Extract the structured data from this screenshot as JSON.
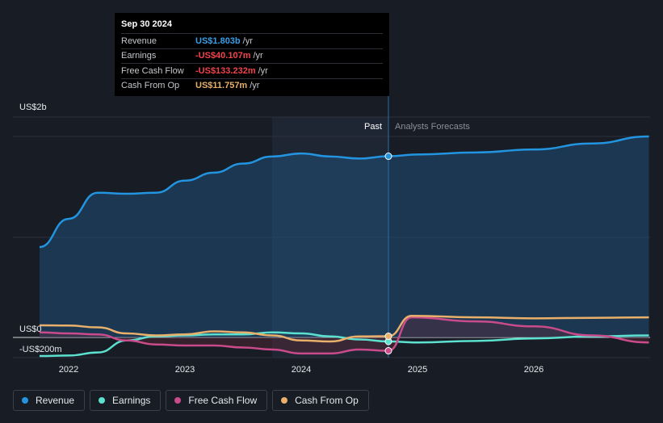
{
  "colors": {
    "revenue": "#2394df",
    "earnings": "#5ce0d0",
    "fcf": "#c94b8b",
    "cfo": "#e8b06a",
    "background": "#181c25"
  },
  "tooltip": {
    "date": "Sep 30 2024",
    "rows": [
      {
        "label": "Revenue",
        "value": "US$1.803b",
        "unit": "/yr",
        "color": "#3a9fe8"
      },
      {
        "label": "Earnings",
        "value": "-US$40.107m",
        "unit": "/yr",
        "color": "#f0434b"
      },
      {
        "label": "Free Cash Flow",
        "value": "-US$133.232m",
        "unit": "/yr",
        "color": "#f0434b"
      },
      {
        "label": "Cash From Op",
        "value": "US$11.757m",
        "unit": "/yr",
        "color": "#e8b06a"
      }
    ]
  },
  "regions": {
    "past": "Past",
    "forecast": "Analysts Forecasts"
  },
  "legend": [
    {
      "label": "Revenue",
      "icon": "revenue-dot-icon",
      "color": "#2394df"
    },
    {
      "label": "Earnings",
      "icon": "earnings-dot-icon",
      "color": "#5ce0d0"
    },
    {
      "label": "Free Cash Flow",
      "icon": "fcf-dot-icon",
      "color": "#c94b8b"
    },
    {
      "label": "Cash From Op",
      "icon": "cfo-dot-icon",
      "color": "#e8b06a"
    }
  ],
  "chart_data": {
    "type": "line",
    "x_tick_labels": [
      "2022",
      "2023",
      "2024",
      "2025",
      "2026"
    ],
    "x_ticks": [
      2022,
      2023,
      2024,
      2025,
      2026
    ],
    "y_tick_labels": [
      "US$2b",
      "US$0",
      "-US$200m"
    ],
    "y_ticks": [
      2000,
      0,
      -200
    ],
    "xlim": [
      2021.7,
      2026.99
    ],
    "ylim": [
      -200,
      2000
    ],
    "highlight_x": 2024.75,
    "shaded_past_range": [
      2023.75,
      2024.75
    ],
    "series": [
      {
        "name": "Revenue",
        "key": "revenue",
        "points": [
          [
            2021.75,
            900
          ],
          [
            2022.0,
            1180
          ],
          [
            2022.25,
            1440
          ],
          [
            2022.5,
            1430
          ],
          [
            2022.75,
            1440
          ],
          [
            2023.0,
            1560
          ],
          [
            2023.25,
            1640
          ],
          [
            2023.5,
            1730
          ],
          [
            2023.75,
            1800
          ],
          [
            2024.0,
            1830
          ],
          [
            2024.25,
            1800
          ],
          [
            2024.5,
            1780
          ],
          [
            2024.75,
            1803
          ],
          [
            2025.0,
            1820
          ],
          [
            2025.5,
            1840
          ],
          [
            2026.0,
            1870
          ],
          [
            2026.5,
            1930
          ],
          [
            2026.99,
            2000
          ]
        ]
      },
      {
        "name": "Earnings",
        "key": "earnings",
        "points": [
          [
            2021.75,
            -185
          ],
          [
            2022.0,
            -180
          ],
          [
            2022.25,
            -150
          ],
          [
            2022.5,
            -30
          ],
          [
            2022.75,
            10
          ],
          [
            2023.0,
            20
          ],
          [
            2023.25,
            30
          ],
          [
            2023.5,
            30
          ],
          [
            2023.75,
            50
          ],
          [
            2024.0,
            40
          ],
          [
            2024.25,
            10
          ],
          [
            2024.5,
            -20
          ],
          [
            2024.75,
            -40
          ],
          [
            2025.0,
            -50
          ],
          [
            2025.5,
            -35
          ],
          [
            2026.0,
            -10
          ],
          [
            2026.5,
            10
          ],
          [
            2026.99,
            20
          ]
        ]
      },
      {
        "name": "Free Cash Flow",
        "key": "fcf",
        "points": [
          [
            2021.75,
            50
          ],
          [
            2022.0,
            40
          ],
          [
            2022.25,
            30
          ],
          [
            2022.5,
            -30
          ],
          [
            2022.75,
            -70
          ],
          [
            2023.0,
            -80
          ],
          [
            2023.25,
            -80
          ],
          [
            2023.5,
            -100
          ],
          [
            2023.75,
            -120
          ],
          [
            2024.0,
            -160
          ],
          [
            2024.25,
            -160
          ],
          [
            2024.5,
            -120
          ],
          [
            2024.75,
            -133
          ],
          [
            2024.95,
            200
          ],
          [
            2025.5,
            160
          ],
          [
            2026.0,
            110
          ],
          [
            2026.5,
            20
          ],
          [
            2026.99,
            -50
          ]
        ]
      },
      {
        "name": "Cash From Op",
        "key": "cfo",
        "points": [
          [
            2021.75,
            120
          ],
          [
            2022.0,
            118
          ],
          [
            2022.25,
            100
          ],
          [
            2022.5,
            40
          ],
          [
            2022.75,
            20
          ],
          [
            2023.0,
            30
          ],
          [
            2023.25,
            60
          ],
          [
            2023.5,
            50
          ],
          [
            2023.75,
            20
          ],
          [
            2024.0,
            -30
          ],
          [
            2024.25,
            -40
          ],
          [
            2024.5,
            10
          ],
          [
            2024.75,
            12
          ],
          [
            2024.95,
            215
          ],
          [
            2025.5,
            200
          ],
          [
            2026.0,
            190
          ],
          [
            2026.5,
            195
          ],
          [
            2026.99,
            200
          ]
        ]
      }
    ]
  }
}
